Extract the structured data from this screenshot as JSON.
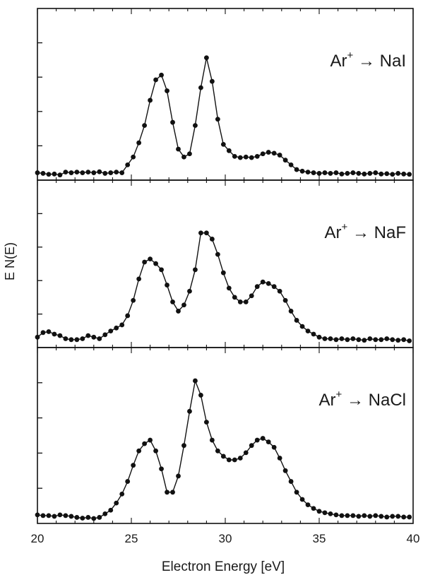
{
  "chart_data": {
    "type": "line",
    "xlabel": "Electron Energy [eV]",
    "ylabel": "E N(E)",
    "xlim": [
      20,
      40
    ],
    "xticks": [
      20,
      25,
      30,
      35,
      40
    ],
    "x_tick_labels": [
      "20",
      "25",
      "30",
      "35",
      "40"
    ],
    "grid": false,
    "legend": "none",
    "markers": "filled-circles",
    "stacked_panels": true,
    "x_step": 0.3,
    "x_start": 20.0,
    "y_units": "relative intensity (arbitrary)",
    "panels": [
      {
        "label_prefix": "Ar",
        "label_sup": "+",
        "label_arrow": "→",
        "label_target": "NaI",
        "ylim": [
          0,
          5
        ],
        "y": [
          0.1,
          0.08,
          0.05,
          0.06,
          0.03,
          0.12,
          0.1,
          0.12,
          0.1,
          0.12,
          0.1,
          0.13,
          0.08,
          0.1,
          0.12,
          0.1,
          0.35,
          0.6,
          1.05,
          1.6,
          2.4,
          3.05,
          3.2,
          2.7,
          1.7,
          0.85,
          0.6,
          0.7,
          1.6,
          2.8,
          3.75,
          3.0,
          1.8,
          1.0,
          0.8,
          0.62,
          0.58,
          0.6,
          0.58,
          0.62,
          0.7,
          0.75,
          0.72,
          0.66,
          0.5,
          0.35,
          0.2,
          0.15,
          0.12,
          0.1,
          0.08,
          0.1,
          0.08,
          0.1,
          0.06,
          0.08,
          0.1,
          0.08,
          0.06,
          0.08,
          0.1,
          0.06,
          0.07,
          0.05,
          0.08,
          0.06,
          0.05
        ]
      },
      {
        "label_prefix": "Ar",
        "label_sup": "+",
        "label_arrow": "→",
        "label_target": "NaF",
        "ylim": [
          0,
          5
        ],
        "y": [
          0.2,
          0.35,
          0.38,
          0.3,
          0.25,
          0.15,
          0.12,
          0.12,
          0.15,
          0.25,
          0.2,
          0.15,
          0.28,
          0.4,
          0.5,
          0.6,
          0.9,
          1.4,
          2.1,
          2.65,
          2.75,
          2.6,
          2.4,
          1.9,
          1.35,
          1.05,
          1.25,
          1.7,
          2.4,
          3.6,
          3.6,
          3.4,
          2.9,
          2.3,
          1.8,
          1.5,
          1.35,
          1.35,
          1.55,
          1.85,
          2.0,
          1.95,
          1.85,
          1.7,
          1.4,
          1.05,
          0.75,
          0.55,
          0.4,
          0.3,
          0.2,
          0.15,
          0.15,
          0.12,
          0.15,
          0.12,
          0.15,
          0.12,
          0.1,
          0.15,
          0.12,
          0.12,
          0.15,
          0.12,
          0.1,
          0.12,
          0.08
        ]
      },
      {
        "label_prefix": "Ar",
        "label_sup": "+",
        "label_arrow": "→",
        "label_target": "NaCl",
        "ylim": [
          0,
          4.5
        ],
        "y": [
          0.12,
          0.1,
          0.1,
          0.08,
          0.12,
          0.1,
          0.08,
          0.05,
          0.03,
          0.05,
          0.02,
          0.05,
          0.15,
          0.25,
          0.45,
          0.7,
          1.05,
          1.5,
          1.9,
          2.1,
          2.2,
          1.9,
          1.4,
          0.75,
          0.75,
          1.2,
          2.05,
          3.0,
          3.85,
          3.45,
          2.7,
          2.2,
          1.9,
          1.75,
          1.65,
          1.65,
          1.7,
          1.85,
          2.05,
          2.2,
          2.25,
          2.15,
          2.0,
          1.7,
          1.35,
          1.05,
          0.75,
          0.55,
          0.4,
          0.3,
          0.22,
          0.18,
          0.15,
          0.12,
          0.1,
          0.1,
          0.1,
          0.08,
          0.1,
          0.08,
          0.1,
          0.08,
          0.06,
          0.08,
          0.08,
          0.06,
          0.06
        ]
      }
    ]
  }
}
